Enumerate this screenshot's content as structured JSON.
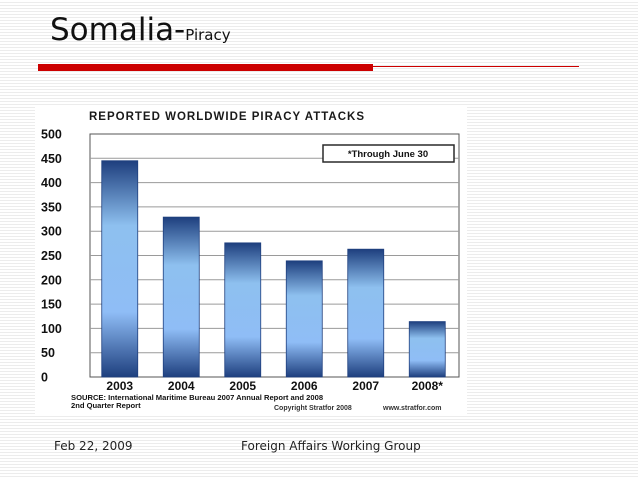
{
  "slide": {
    "title_main": "Somalia-",
    "title_sub": "Piracy",
    "footer_date": "Feb 22, 2009",
    "footer_org": "Foreign Affairs Working Group"
  },
  "chart_data": {
    "type": "bar",
    "title": "REPORTED WORLDWIDE PIRACY ATTACKS",
    "categories": [
      "2003",
      "2004",
      "2005",
      "2006",
      "2007",
      "2008*"
    ],
    "values": [
      445,
      329,
      276,
      239,
      263,
      114
    ],
    "ylim": [
      0,
      500
    ],
    "yticks": [
      0,
      50,
      100,
      150,
      200,
      250,
      300,
      350,
      400,
      450,
      500
    ],
    "grid": true,
    "legend_note": "*Through June 30",
    "source_line1": "SOURCE: International Maritime Bureau 2007 Annual Report and 2008",
    "source_line2": "2nd Quarter Report",
    "copyright": "Copyright Stratfor 2008",
    "website": "www.stratfor.com",
    "colors": {
      "bar_edge": "#1e3f7e",
      "bar_mid": "#8ec0ef",
      "bar_light": "#8fbdf6",
      "note_border": "#2a2a2a"
    }
  }
}
